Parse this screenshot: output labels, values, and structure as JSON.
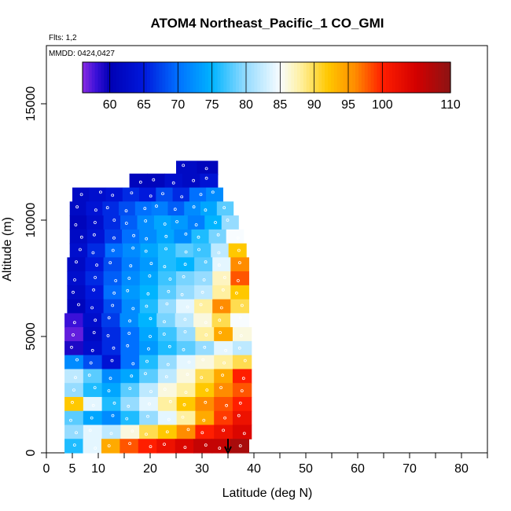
{
  "chart_data": {
    "type": "heatmap",
    "title": "ATOM4 Northeast_Pacific_1 CO_GMI",
    "flights_note": "Flts: 1,2",
    "dates_note": "MMDD: 0424,0427",
    "xlabel": "Latitude (deg N)",
    "ylabel": "Altitude (m)",
    "xlim": [
      0,
      85
    ],
    "ylim": [
      0,
      17500
    ],
    "x_ticks": [
      0,
      5,
      10,
      20,
      30,
      40,
      50,
      60,
      70,
      80
    ],
    "x_minor_ticks": [
      15,
      25,
      35,
      45,
      55,
      65,
      75,
      85
    ],
    "y_ticks": [
      0,
      5000,
      10000,
      15000
    ],
    "grid": false,
    "colorbar": {
      "position": "top",
      "min": 56,
      "max": 110,
      "ticks": [
        60,
        65,
        70,
        75,
        80,
        85,
        90,
        95,
        100,
        110
      ],
      "stops": [
        {
          "v": 56,
          "color": "#8a2be2"
        },
        {
          "v": 58,
          "color": "#3a10d8"
        },
        {
          "v": 60,
          "color": "#0000b4"
        },
        {
          "v": 65,
          "color": "#0018dc"
        },
        {
          "v": 70,
          "color": "#0070ff"
        },
        {
          "v": 75,
          "color": "#00b4ff"
        },
        {
          "v": 80,
          "color": "#96dcff"
        },
        {
          "v": 85,
          "color": "#f8fcff"
        },
        {
          "v": 88,
          "color": "#fff0a0"
        },
        {
          "v": 92,
          "color": "#ffc800"
        },
        {
          "v": 96,
          "color": "#ff8c00"
        },
        {
          "v": 100,
          "color": "#ff1e00"
        },
        {
          "v": 105,
          "color": "#d20000"
        },
        {
          "v": 110,
          "color": "#8c1414"
        }
      ]
    },
    "layers": [
      {
        "alt": 12250,
        "lat": [
          25,
          33
        ],
        "values": [
          62,
          61
        ]
      },
      {
        "alt": 11700,
        "lat": [
          16,
          33
        ],
        "values": [
          61,
          61,
          63,
          62,
          64
        ]
      },
      {
        "alt": 11100,
        "lat": [
          5,
          34
        ],
        "values": [
          62,
          63,
          64,
          66,
          65,
          68,
          66,
          70,
          72
        ]
      },
      {
        "alt": 10500,
        "lat": [
          4.5,
          36
        ],
        "values": [
          62,
          64,
          66,
          68,
          70,
          71,
          69,
          72,
          74,
          78
        ]
      },
      {
        "alt": 9900,
        "lat": [
          4.5,
          37
        ],
        "values": [
          61,
          63,
          66,
          69,
          72,
          74,
          73,
          71,
          75,
          80
        ]
      },
      {
        "alt": 9300,
        "lat": [
          4.5,
          38
        ],
        "values": [
          62,
          64,
          67,
          70,
          72,
          74,
          72,
          76,
          79,
          85
        ]
      },
      {
        "alt": 8700,
        "lat": [
          4.5,
          38.5
        ],
        "values": [
          63,
          66,
          70,
          72,
          74,
          76,
          78,
          77,
          82,
          92
        ]
      },
      {
        "alt": 8100,
        "lat": [
          4,
          39
        ],
        "values": [
          62,
          65,
          68,
          71,
          73,
          76,
          75,
          78,
          84,
          96
        ]
      },
      {
        "alt": 7500,
        "lat": [
          4,
          39
        ],
        "values": [
          63,
          66,
          69,
          72,
          74,
          77,
          79,
          80,
          87,
          98
        ]
      },
      {
        "alt": 6900,
        "lat": [
          4,
          39
        ],
        "values": [
          62,
          65,
          70,
          73,
          75,
          78,
          80,
          82,
          88,
          92
        ]
      },
      {
        "alt": 6300,
        "lat": [
          4,
          39
        ],
        "values": [
          61,
          64,
          68,
          72,
          76,
          80,
          84,
          88,
          96,
          90
        ]
      },
      {
        "alt": 5700,
        "lat": [
          3.5,
          39
        ],
        "values": [
          58,
          63,
          67,
          72,
          75,
          79,
          82,
          86,
          90,
          85
        ]
      },
      {
        "alt": 5100,
        "lat": [
          3.5,
          39.5
        ],
        "values": [
          57,
          62,
          66,
          70,
          74,
          77,
          80,
          88,
          94,
          86
        ]
      },
      {
        "alt": 4500,
        "lat": [
          3.5,
          39.5
        ],
        "values": [
          59,
          63,
          66,
          70,
          73,
          76,
          78,
          80,
          84,
          82
        ]
      },
      {
        "alt": 3900,
        "lat": [
          3.5,
          39.5
        ],
        "values": [
          72,
          68,
          64,
          70,
          76,
          80,
          84,
          86,
          88,
          90
        ]
      },
      {
        "alt": 3300,
        "lat": [
          3.5,
          39.5
        ],
        "values": [
          82,
          78,
          72,
          74,
          78,
          82,
          86,
          90,
          94,
          100
        ]
      },
      {
        "alt": 2700,
        "lat": [
          3.5,
          39.5
        ],
        "values": [
          80,
          76,
          74,
          78,
          82,
          86,
          88,
          92,
          96,
          98
        ]
      },
      {
        "alt": 2100,
        "lat": [
          3.5,
          39.5
        ],
        "values": [
          92,
          84,
          76,
          80,
          84,
          88,
          92,
          96,
          98,
          100
        ]
      },
      {
        "alt": 1500,
        "lat": [
          3.5,
          39.5
        ],
        "values": [
          78,
          74,
          72,
          76,
          80,
          84,
          88,
          94,
          99,
          102
        ]
      },
      {
        "alt": 900,
        "lat": [
          3.5,
          39.5
        ],
        "values": [
          80,
          84,
          82,
          86,
          90,
          92,
          96,
          100,
          102,
          104
        ]
      },
      {
        "alt": 300,
        "lat": [
          3.5,
          39
        ],
        "values": [
          76,
          84,
          94,
          98,
          100,
          102,
          104,
          106,
          106,
          108
        ]
      }
    ],
    "arrow_marker": {
      "lat": 35,
      "alt_from": 600,
      "alt_to": 0
    }
  }
}
